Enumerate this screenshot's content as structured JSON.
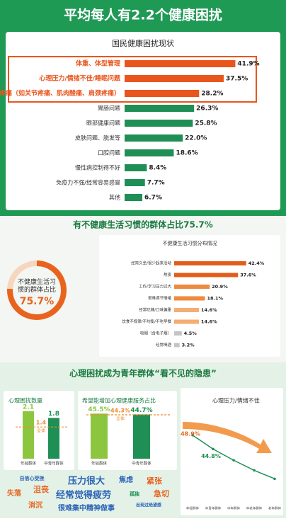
{
  "header": {
    "title": "平均每人有2.2个健康困扰"
  },
  "psych_title": "心理困扰成为青年群体“看不见的隐患”",
  "chart_data": [
    {
      "type": "hbar",
      "title": "国民健康困扰现状",
      "categories": [
        "体重、体型管理",
        "心理压力/情绪不佳/睡眠问题",
        "疼痛（如关节疼痛、肌肉酸痛、肩颈疼痛）",
        "胃肠问题",
        "眼部健康问题",
        "皮肤问题、脱发等",
        "口腔问题",
        "慢性病控制得不好",
        "免疫力不强/经常容易感冒",
        "其他"
      ],
      "values": [
        41.9,
        37.5,
        28.2,
        26.3,
        25.8,
        22.0,
        18.6,
        8.4,
        7.7,
        6.7
      ],
      "value_labels": [
        "41.9%",
        "37.5%",
        "28.2%",
        "26.3%",
        "25.8%",
        "22.0%",
        "18.6%",
        "8.4%",
        "7.7%",
        "6.7%"
      ],
      "colors": [
        "#e8561e",
        "#e8561e",
        "#e8561e",
        "#1f8f55",
        "#1f8f55",
        "#1f8f55",
        "#1f8f55",
        "#1f8f55",
        "#1f8f55",
        "#1f8f55"
      ],
      "highlight_count": 3,
      "xlim": [
        0,
        45
      ]
    },
    {
      "type": "donut",
      "title": "有不健康生活习惯的群体占比75.7%",
      "label": "不健康生活习惯的群体占比",
      "value": 75.7,
      "value_label": "75.7%",
      "color": "#e8641e",
      "ylim": [
        0,
        100
      ]
    },
    {
      "type": "hbar",
      "title": "不健康生活习惯分布情况",
      "categories": [
        "经常久坐/很少起来活动",
        "熬夜",
        "工作/学习压力过大",
        "很难调节情绪",
        "经常吃辣/口味偏重",
        "饮食不规律/不均衡/不吃早餐",
        "吸烟（含电子烟）",
        "经常喝酒"
      ],
      "values": [
        42.4,
        37.6,
        20.9,
        18.1,
        14.6,
        14.6,
        4.5,
        3.2
      ],
      "value_labels": [
        "42.4%",
        "37.6%",
        "20.9%",
        "18.1%",
        "14.6%",
        "14.6%",
        "4.5%",
        "3.2%"
      ],
      "colors": [
        "#e35d1a",
        "#e35d1a",
        "#ee8a3e",
        "#ee8a3e",
        "#f4ad72",
        "#f4ad72",
        "#c4c4c4",
        "#c4c4c4"
      ],
      "xlim": [
        0,
        45
      ]
    },
    {
      "type": "bar",
      "title": "心理困扰数量",
      "categories": [
        "年轻群体",
        "中青年群体"
      ],
      "values": [
        2.1,
        1.8
      ],
      "colors": [
        "#8cc63f",
        "#1f8f55"
      ],
      "reference": {
        "name": "全体",
        "value": 1.4
      },
      "ylim": [
        0,
        2.5
      ]
    },
    {
      "type": "bar",
      "title": "希望能增加心理健康服务占比",
      "categories": [
        "年轻群体",
        "中青年群体"
      ],
      "values": [
        45.5,
        44.7
      ],
      "value_labels": [
        "45.5%",
        "44.7%"
      ],
      "colors": [
        "#8cc63f",
        "#1f8f55"
      ],
      "reference": {
        "name": "全体",
        "value": 44.3,
        "value_label": "44.3%"
      },
      "ylim": [
        0,
        50
      ]
    },
    {
      "type": "line",
      "title": "心理压力/情绪不佳",
      "categories": [
        "年轻群体",
        "中青年群体",
        "中年群体",
        "中老年群体",
        "老年群体"
      ],
      "values": [
        48.9,
        44.8,
        41.5,
        38.5,
        36.0
      ],
      "value_labels": [
        "48.9%",
        "44.8%",
        null,
        null,
        null
      ],
      "color": "#1f8f55",
      "ylim": [
        30,
        52
      ]
    }
  ],
  "word_cloud": [
    "自信心受挫",
    "压力很大",
    "焦虑",
    "紧张",
    "失落",
    "沮丧",
    "经常觉得疲劳",
    "孤独",
    "急切",
    "消沉",
    "很难集中精神做事",
    "出现过绝望感"
  ]
}
